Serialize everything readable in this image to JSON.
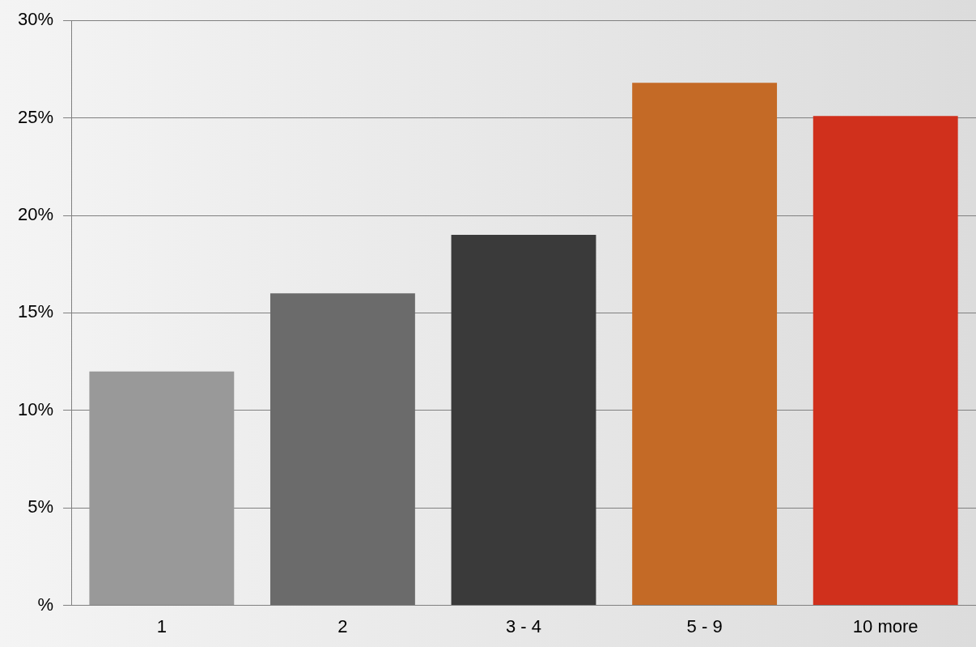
{
  "chart_data": {
    "type": "bar",
    "categories": [
      "1",
      "2",
      "3 - 4",
      "5 - 9",
      "10 more"
    ],
    "values": [
      12,
      16,
      19,
      26.8,
      25.1
    ],
    "colors": [
      "#999999",
      "#6b6b6b",
      "#3a3a3a",
      "#c46a26",
      "#d0301c"
    ],
    "ylim": [
      0,
      30
    ],
    "yticks": [
      {
        "value": 0,
        "label": "%"
      },
      {
        "value": 5,
        "label": "5%"
      },
      {
        "value": 10,
        "label": "10%"
      },
      {
        "value": 15,
        "label": "15%"
      },
      {
        "value": 20,
        "label": "20%"
      },
      {
        "value": 25,
        "label": "25%"
      },
      {
        "value": 30,
        "label": "30%"
      }
    ],
    "grid": "y"
  }
}
